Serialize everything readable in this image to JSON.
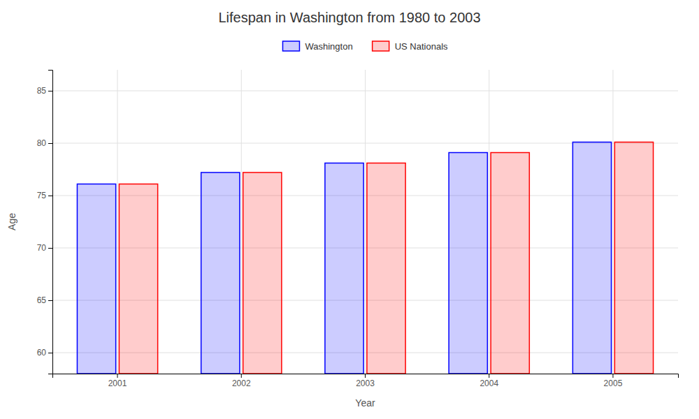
{
  "chart_data": {
    "type": "bar",
    "title": "Lifespan in Washington from 1980 to 2003",
    "xlabel": "Year",
    "ylabel": "Age",
    "categories": [
      "2001",
      "2002",
      "2003",
      "2004",
      "2005"
    ],
    "series": [
      {
        "name": "Washington",
        "color": "#0000ff",
        "values": [
          76.1,
          77.2,
          78.1,
          79.1,
          80.1
        ]
      },
      {
        "name": "US Nationals",
        "color": "#ff0000",
        "values": [
          76.1,
          77.2,
          78.1,
          79.1,
          80.1
        ]
      }
    ],
    "ylim": [
      58,
      87
    ],
    "yticks": [
      60,
      65,
      70,
      75,
      80,
      85
    ],
    "grid": true,
    "legend": "top"
  }
}
